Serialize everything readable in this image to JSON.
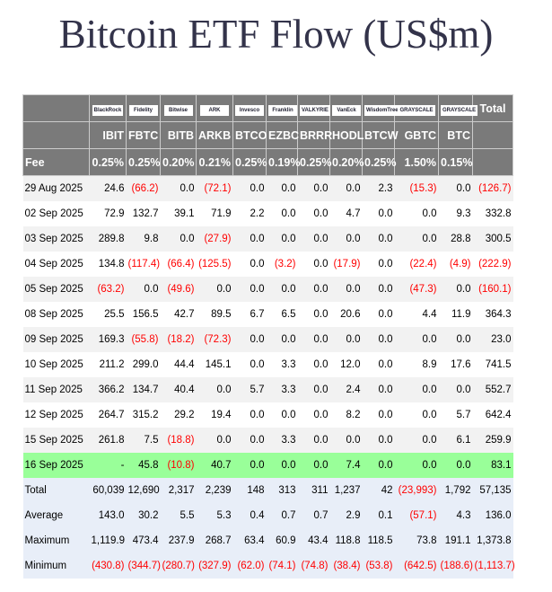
{
  "title": "Bitcoin ETF Flow (US$m)",
  "issuers": [
    "BlackRock",
    "Fidelity",
    "Bitwise",
    "ARK",
    "Invesco",
    "Franklin",
    "VALKYRIE",
    "VanEck",
    "WisdomTree",
    "GRAYSCALE",
    "GRAYSCALE"
  ],
  "total_label": "Total",
  "tickers": [
    "IBIT",
    "FBTC",
    "BITB",
    "ARKB",
    "BTCO",
    "EZBC",
    "BRRR",
    "HODL",
    "BTCW",
    "GBTC",
    "BTC"
  ],
  "fee_label": "Fee",
  "fees": [
    "0.25%",
    "0.25%",
    "0.20%",
    "0.21%",
    "0.25%",
    "0.19%",
    "0.25%",
    "0.20%",
    "0.25%",
    "1.50%",
    "0.15%"
  ],
  "colors": {
    "negative": "#ff0000",
    "header_bg": "#7a7a7a",
    "latest_row": "#99ff99",
    "summary_bg": "#e8eef8"
  },
  "rows": [
    {
      "date": "29 Aug 2025",
      "values": [
        "24.6",
        "(66.2)",
        "0.0",
        "(72.1)",
        "0.0",
        "0.0",
        "0.0",
        "0.0",
        "2.3",
        "(15.3)",
        "0.0",
        "(126.7)"
      ]
    },
    {
      "date": "02 Sep 2025",
      "values": [
        "72.9",
        "132.7",
        "39.1",
        "71.9",
        "2.2",
        "0.0",
        "0.0",
        "4.7",
        "0.0",
        "0.0",
        "9.3",
        "332.8"
      ]
    },
    {
      "date": "03 Sep 2025",
      "values": [
        "289.8",
        "9.8",
        "0.0",
        "(27.9)",
        "0.0",
        "0.0",
        "0.0",
        "0.0",
        "0.0",
        "0.0",
        "28.8",
        "300.5"
      ]
    },
    {
      "date": "04 Sep 2025",
      "values": [
        "134.8",
        "(117.4)",
        "(66.4)",
        "(125.5)",
        "0.0",
        "(3.2)",
        "0.0",
        "(17.9)",
        "0.0",
        "(22.4)",
        "(4.9)",
        "(222.9)"
      ]
    },
    {
      "date": "05 Sep 2025",
      "values": [
        "(63.2)",
        "0.0",
        "(49.6)",
        "0.0",
        "0.0",
        "0.0",
        "0.0",
        "0.0",
        "0.0",
        "(47.3)",
        "0.0",
        "(160.1)"
      ]
    },
    {
      "date": "08 Sep 2025",
      "values": [
        "25.5",
        "156.5",
        "42.7",
        "89.5",
        "6.7",
        "6.5",
        "0.0",
        "20.6",
        "0.0",
        "4.4",
        "11.9",
        "364.3"
      ]
    },
    {
      "date": "09 Sep 2025",
      "values": [
        "169.3",
        "(55.8)",
        "(18.2)",
        "(72.3)",
        "0.0",
        "0.0",
        "0.0",
        "0.0",
        "0.0",
        "0.0",
        "0.0",
        "23.0"
      ]
    },
    {
      "date": "10 Sep 2025",
      "values": [
        "211.2",
        "299.0",
        "44.4",
        "145.1",
        "0.0",
        "3.3",
        "0.0",
        "12.0",
        "0.0",
        "8.9",
        "17.6",
        "741.5"
      ]
    },
    {
      "date": "11 Sep 2025",
      "values": [
        "366.2",
        "134.7",
        "40.4",
        "0.0",
        "5.7",
        "3.3",
        "0.0",
        "2.4",
        "0.0",
        "0.0",
        "0.0",
        "552.7"
      ]
    },
    {
      "date": "12 Sep 2025",
      "values": [
        "264.7",
        "315.2",
        "29.2",
        "19.4",
        "0.0",
        "0.0",
        "0.0",
        "8.2",
        "0.0",
        "0.0",
        "5.7",
        "642.4"
      ]
    },
    {
      "date": "15 Sep 2025",
      "values": [
        "261.8",
        "7.5",
        "(18.8)",
        "0.0",
        "0.0",
        "3.3",
        "0.0",
        "0.0",
        "0.0",
        "0.0",
        "6.1",
        "259.9"
      ]
    },
    {
      "date": "16 Sep 2025",
      "values": [
        "-",
        "45.8",
        "(10.8)",
        "40.7",
        "0.0",
        "0.0",
        "0.0",
        "7.4",
        "0.0",
        "0.0",
        "0.0",
        "83.1"
      ]
    }
  ],
  "summary": [
    {
      "label": "Total",
      "values": [
        "60,039",
        "12,690",
        "2,317",
        "2,239",
        "148",
        "313",
        "311",
        "1,237",
        "42",
        "(23,993)",
        "1,792",
        "57,135"
      ]
    },
    {
      "label": "Average",
      "values": [
        "143.0",
        "30.2",
        "5.5",
        "5.3",
        "0.4",
        "0.7",
        "0.7",
        "2.9",
        "0.1",
        "(57.1)",
        "4.3",
        "136.0"
      ]
    },
    {
      "label": "Maximum",
      "values": [
        "1,119.9",
        "473.4",
        "237.9",
        "268.7",
        "63.4",
        "60.9",
        "43.4",
        "118.8",
        "118.5",
        "73.8",
        "191.1",
        "1,373.8"
      ]
    },
    {
      "label": "Minimum",
      "values": [
        "(430.8)",
        "(344.7)",
        "(280.7)",
        "(327.9)",
        "(62.0)",
        "(74.1)",
        "(74.8)",
        "(38.4)",
        "(53.8)",
        "(642.5)",
        "(188.6)",
        "(1,113.7)"
      ]
    }
  ]
}
